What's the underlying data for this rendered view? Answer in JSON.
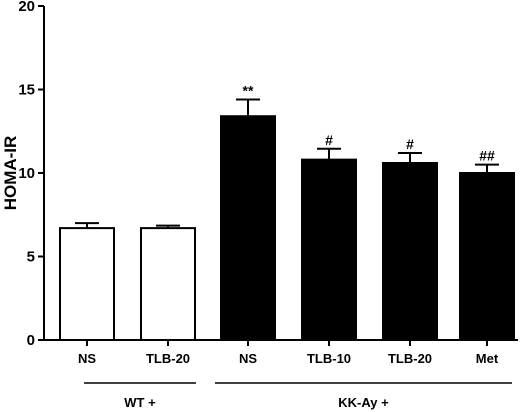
{
  "chart_data": {
    "type": "bar",
    "ylabel": "HOMA-IR",
    "ylim": [
      0,
      20
    ],
    "yticks": [
      "0",
      "5",
      "10",
      "15",
      "20"
    ],
    "categories": [
      "NS",
      "TLB-20",
      "NS",
      "TLB-10",
      "TLB-20",
      "Met"
    ],
    "values": [
      6.7,
      6.7,
      13.4,
      10.8,
      10.6,
      10.0
    ],
    "errors": [
      0.3,
      0.15,
      1.0,
      0.65,
      0.6,
      0.5
    ],
    "significance": [
      "",
      "",
      "**",
      "#",
      "#",
      "##"
    ],
    "fill": [
      "white",
      "white",
      "black",
      "black",
      "black",
      "black"
    ],
    "groups": [
      {
        "label": "WT +",
        "members": [
          0,
          1
        ]
      },
      {
        "label": "KK-Ay +",
        "members": [
          2,
          3,
          4,
          5
        ]
      }
    ],
    "grid": false
  }
}
